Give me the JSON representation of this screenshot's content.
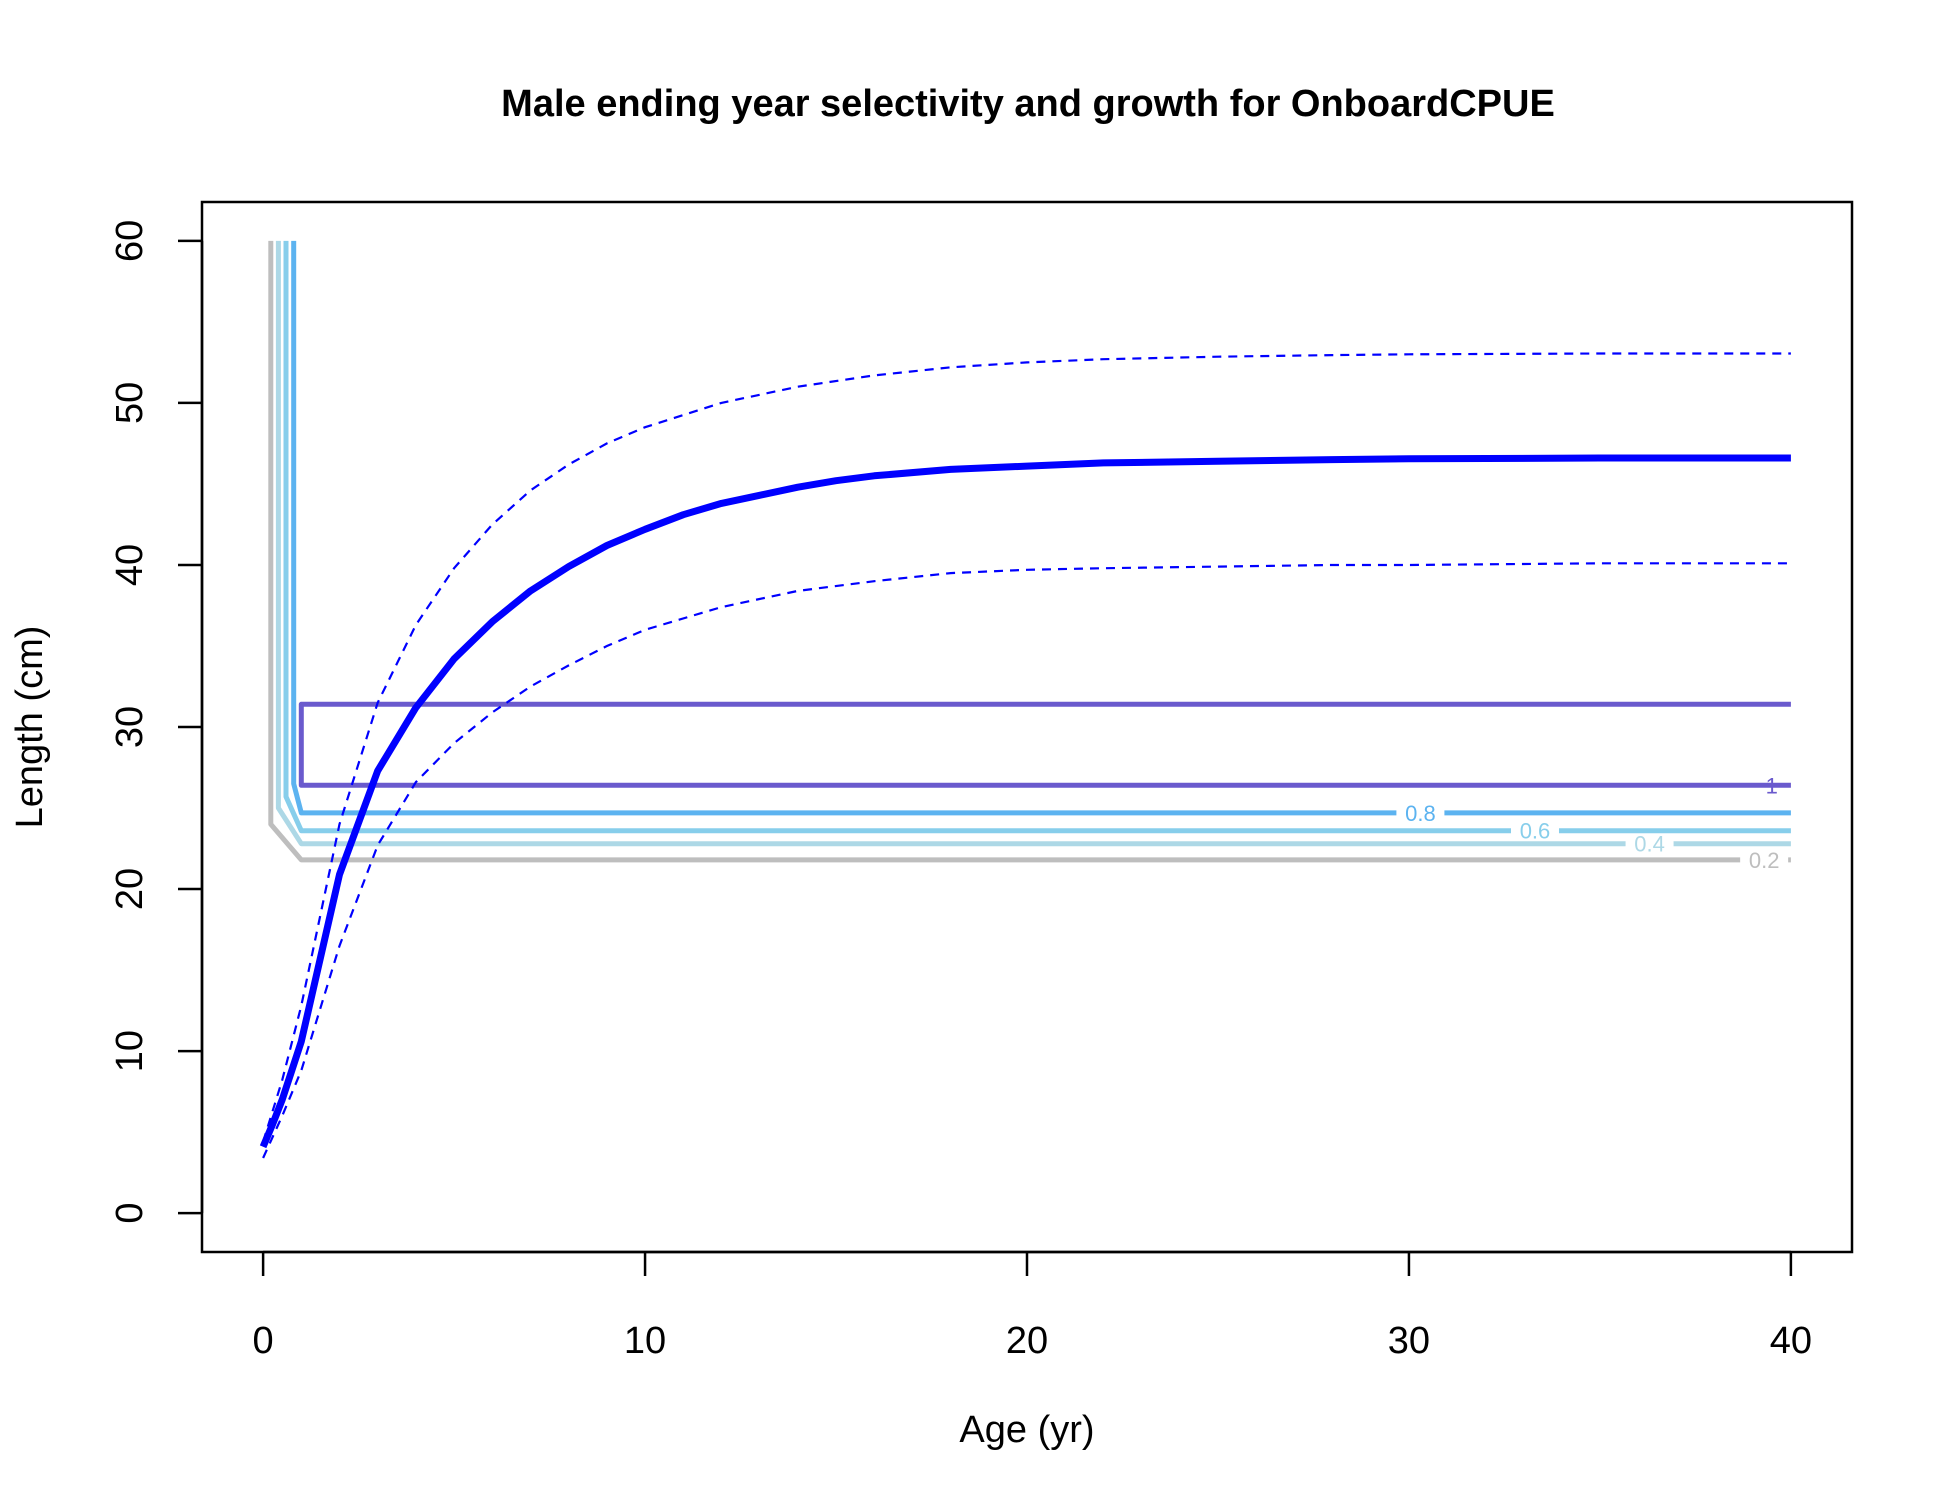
{
  "chart_data": {
    "type": "line",
    "title": "Male ending year selectivity and growth for OnboardCPUE",
    "xlabel": "Age (yr)",
    "ylabel": "Length (cm)",
    "xlim": [
      -1.6,
      41.6
    ],
    "ylim": [
      -2.4,
      62.4
    ],
    "xticks": [
      0,
      10,
      20,
      30,
      40
    ],
    "yticks": [
      0,
      10,
      20,
      30,
      40,
      50,
      60
    ],
    "grid": false,
    "legend": "none",
    "colors": {
      "growth": "#0000ff",
      "level_0.2": "#bebebe",
      "level_0.4": "#add8e6",
      "level_0.6": "#87ceeb",
      "level_0.8": "#5cb3f0",
      "level_1": "#6a5acd"
    },
    "growth": {
      "mean": {
        "x": [
          0,
          0.25,
          0.5,
          0.75,
          1,
          2,
          3,
          4,
          5,
          6,
          7,
          8,
          9,
          10,
          11,
          12,
          13,
          14,
          15,
          16,
          18,
          20,
          22,
          25,
          28,
          30,
          35,
          40
        ],
        "y": [
          4.1,
          5.5,
          7.0,
          8.8,
          10.6,
          20.9,
          27.3,
          31.2,
          34.2,
          36.5,
          38.4,
          39.9,
          41.2,
          42.2,
          43.1,
          43.8,
          44.3,
          44.8,
          45.2,
          45.5,
          45.9,
          46.1,
          46.3,
          46.4,
          46.5,
          46.55,
          46.6,
          46.6
        ]
      },
      "upper": {
        "x": [
          0,
          0.5,
          1,
          2,
          3,
          4,
          5,
          6,
          7,
          8,
          9,
          10,
          12,
          14,
          16,
          18,
          20,
          22,
          25,
          28,
          30,
          35,
          40
        ],
        "y": [
          4.4,
          8.2,
          12.8,
          24.0,
          31.5,
          36.3,
          39.8,
          42.5,
          44.6,
          46.2,
          47.5,
          48.5,
          50.0,
          51.0,
          51.7,
          52.2,
          52.5,
          52.7,
          52.85,
          52.95,
          53.0,
          53.05,
          53.05
        ]
      },
      "lower": {
        "x": [
          0,
          0.5,
          1,
          2,
          3,
          4,
          5,
          6,
          7,
          8,
          9,
          10,
          12,
          14,
          16,
          18,
          20,
          22,
          25,
          28,
          30,
          35,
          40
        ],
        "y": [
          3.4,
          6.0,
          8.8,
          16.5,
          22.7,
          26.6,
          29.0,
          30.9,
          32.5,
          33.8,
          35.0,
          36.0,
          37.4,
          38.4,
          39.0,
          39.5,
          39.7,
          39.8,
          39.9,
          40.0,
          40.0,
          40.1,
          40.1
        ]
      }
    },
    "selectivity_contours": [
      {
        "level": "0.2",
        "label": "0.2",
        "x_corner": 0.2,
        "y_top": 60,
        "y_bend": 24.0,
        "x_end_bend": 1.0,
        "y_line": 21.8,
        "label_x": 39.3
      },
      {
        "level": "0.4",
        "label": "0.4",
        "x_corner": 0.4,
        "y_top": 60,
        "y_bend": 25.0,
        "x_end_bend": 1.0,
        "y_line": 22.8,
        "label_x": 36.3
      },
      {
        "level": "0.6",
        "label": "0.6",
        "x_corner": 0.6,
        "y_top": 60,
        "y_bend": 25.7,
        "x_end_bend": 1.0,
        "y_line": 23.6,
        "label_x": 33.3
      },
      {
        "level": "0.8",
        "label": "0.8",
        "x_corner": 0.8,
        "y_top": 60,
        "y_bend": 26.5,
        "x_end_bend": 1.0,
        "y_line": 24.7,
        "label_x": 30.3
      },
      {
        "level": "1",
        "label": "1",
        "closed": true,
        "x_start": 1.0,
        "y_low": 26.4,
        "y_high": 31.4,
        "x_end": 40,
        "label_x": 39.5
      }
    ]
  }
}
